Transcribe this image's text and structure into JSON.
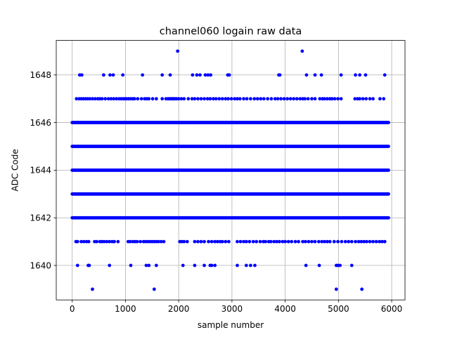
{
  "chart_data": {
    "type": "scatter",
    "title": "channel060 logain raw data",
    "xlabel": "sample number",
    "ylabel": "ADC Code",
    "xlim": [
      -300,
      6250
    ],
    "ylim": [
      1638.55,
      1649.45
    ],
    "x_ticks": [
      0,
      1000,
      2000,
      3000,
      4000,
      5000,
      6000
    ],
    "y_ticks": [
      1640,
      1642,
      1644,
      1646,
      1648
    ],
    "grid": true,
    "marker_color": "#0000ff",
    "x_range": [
      0,
      5950
    ],
    "dense_levels": [
      1642,
      1643,
      1644,
      1645,
      1646
    ],
    "sparse_levels": {
      "1649": [
        1980,
        4320
      ],
      "1648": [
        140,
        180,
        590,
        710,
        770,
        950,
        1320,
        1690,
        1840,
        2260,
        2340,
        2400,
        2500,
        2550,
        2600,
        2920,
        2950,
        3880,
        3900,
        4400,
        4560,
        4680,
        5050,
        5320,
        5400,
        5510,
        5870
      ],
      "1647": [
        80,
        130,
        170,
        210,
        250,
        290,
        330,
        380,
        430,
        480,
        520,
        560,
        620,
        680,
        730,
        780,
        830,
        880,
        920,
        960,
        990,
        1020,
        1060,
        1100,
        1140,
        1170,
        1230,
        1300,
        1360,
        1400,
        1440,
        1510,
        1580,
        1690,
        1760,
        1800,
        1830,
        1860,
        1880,
        1900,
        1930,
        1960,
        2000,
        2050,
        2100,
        2180,
        2250,
        2300,
        2360,
        2420,
        2480,
        2540,
        2590,
        2650,
        2700,
        2760,
        2820,
        2880,
        2930,
        2990,
        3050,
        3100,
        3150,
        3220,
        3280,
        3350,
        3420,
        3480,
        3540,
        3600,
        3670,
        3740,
        3810,
        3860,
        3920,
        3980,
        4040,
        4100,
        4160,
        4220,
        4280,
        4330,
        4370,
        4430,
        4500,
        4560,
        4650,
        4700,
        4740,
        4790,
        4840,
        4880,
        4930,
        4990,
        5050,
        5310,
        5360,
        5400,
        5460,
        5520,
        5590,
        5650,
        5780,
        5850
      ],
      "1641": [
        70,
        100,
        170,
        220,
        270,
        310,
        420,
        460,
        520,
        560,
        600,
        650,
        700,
        750,
        790,
        860,
        1050,
        1090,
        1140,
        1180,
        1220,
        1280,
        1340,
        1380,
        1420,
        1460,
        1500,
        1540,
        1580,
        1620,
        1670,
        1720,
        2020,
        2060,
        2100,
        2160,
        2300,
        2360,
        2420,
        2480,
        2560,
        2620,
        2680,
        2730,
        2780,
        2820,
        2880,
        2940,
        3100,
        3160,
        3220,
        3270,
        3330,
        3400,
        3460,
        3530,
        3590,
        3630,
        3690,
        3730,
        3790,
        3840,
        3890,
        3950,
        4000,
        4060,
        4120,
        4190,
        4250,
        4330,
        4380,
        4440,
        4500,
        4560,
        4630,
        4690,
        4740,
        4790,
        4840,
        4920,
        4990,
        5060,
        5130,
        5190,
        5250,
        5320,
        5380,
        5430,
        5480,
        5530,
        5590,
        5650,
        5710,
        5770,
        5820,
        5870
      ],
      "1640": [
        100,
        300,
        320,
        700,
        1100,
        1390,
        1440,
        1580,
        2080,
        2300,
        2480,
        2590,
        2620,
        2680,
        3100,
        3270,
        3350,
        3430,
        4390,
        4640,
        4960,
        4990,
        5030,
        5250
      ],
      "1639": [
        380,
        1540,
        4960,
        5440
      ]
    }
  }
}
